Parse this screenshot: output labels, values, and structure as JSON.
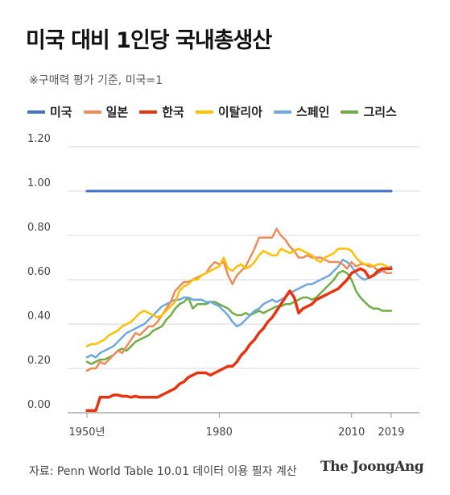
{
  "title": "미국 대비 1인당 국내총생산",
  "subtitle": "※구매력 평가 기준, 미국=1",
  "source": "자료: Penn World Table 10.01 데이터 이용 필자 계산",
  "brand": "The JoongAng",
  "chart_data": {
    "type": "line",
    "xlim": [
      1950,
      2019
    ],
    "ylim": [
      0,
      1.2
    ],
    "yticks": [
      "0.00",
      "0.20",
      "0.40",
      "0.60",
      "0.80",
      "1.00",
      "1.20"
    ],
    "xticks": [
      {
        "value": 1950,
        "label": "1950년"
      },
      {
        "value": 1980,
        "label": "1980"
      },
      {
        "value": 2010,
        "label": "2010"
      },
      {
        "value": 2019,
        "label": "2019"
      }
    ],
    "grid": true,
    "legend_position": "top",
    "series": [
      {
        "name": "미국",
        "color": "#4472c4",
        "width": 3,
        "x": [
          1950,
          2019
        ],
        "y": [
          1.0,
          1.0
        ]
      },
      {
        "name": "일본",
        "color": "#ed8b5a",
        "width": 2.5,
        "x": [
          1950,
          1951,
          1952,
          1953,
          1954,
          1955,
          1956,
          1957,
          1958,
          1959,
          1960,
          1961,
          1962,
          1963,
          1964,
          1965,
          1966,
          1967,
          1968,
          1969,
          1970,
          1971,
          1972,
          1973,
          1974,
          1975,
          1976,
          1977,
          1978,
          1979,
          1980,
          1981,
          1982,
          1983,
          1984,
          1985,
          1986,
          1987,
          1988,
          1989,
          1990,
          1991,
          1992,
          1993,
          1994,
          1995,
          1996,
          1997,
          1998,
          1999,
          2000,
          2001,
          2002,
          2003,
          2004,
          2005,
          2006,
          2007,
          2008,
          2009,
          2010,
          2011,
          2012,
          2013,
          2014,
          2015,
          2016,
          2017,
          2018,
          2019
        ],
        "y": [
          0.19,
          0.2,
          0.2,
          0.23,
          0.22,
          0.24,
          0.26,
          0.28,
          0.27,
          0.3,
          0.33,
          0.36,
          0.35,
          0.37,
          0.39,
          0.39,
          0.41,
          0.44,
          0.47,
          0.5,
          0.55,
          0.57,
          0.59,
          0.59,
          0.6,
          0.61,
          0.62,
          0.63,
          0.66,
          0.68,
          0.67,
          0.68,
          0.62,
          0.58,
          0.62,
          0.64,
          0.66,
          0.7,
          0.74,
          0.79,
          0.79,
          0.79,
          0.79,
          0.83,
          0.8,
          0.78,
          0.75,
          0.73,
          0.7,
          0.7,
          0.71,
          0.7,
          0.7,
          0.7,
          0.69,
          0.68,
          0.68,
          0.68,
          0.67,
          0.65,
          0.68,
          0.66,
          0.67,
          0.67,
          0.66,
          0.66,
          0.64,
          0.64,
          0.63,
          0.63
        ]
      },
      {
        "name": "한국",
        "color": "#e8330e",
        "width": 3.5,
        "x": [
          1950,
          1951,
          1952,
          1953,
          1954,
          1955,
          1956,
          1957,
          1958,
          1959,
          1960,
          1961,
          1962,
          1963,
          1964,
          1965,
          1966,
          1967,
          1968,
          1969,
          1970,
          1971,
          1972,
          1973,
          1974,
          1975,
          1976,
          1977,
          1978,
          1979,
          1980,
          1981,
          1982,
          1983,
          1984,
          1985,
          1986,
          1987,
          1988,
          1989,
          1990,
          1991,
          1992,
          1993,
          1994,
          1995,
          1996,
          1997,
          1998,
          1999,
          2000,
          2001,
          2002,
          2003,
          2004,
          2005,
          2006,
          2007,
          2008,
          2009,
          2010,
          2011,
          2012,
          2013,
          2014,
          2015,
          2016,
          2017,
          2018,
          2019
        ],
        "y": [
          0.01,
          0.01,
          0.01,
          0.07,
          0.07,
          0.07,
          0.08,
          0.08,
          0.075,
          0.075,
          0.07,
          0.075,
          0.07,
          0.07,
          0.07,
          0.07,
          0.07,
          0.08,
          0.09,
          0.1,
          0.11,
          0.13,
          0.14,
          0.16,
          0.17,
          0.18,
          0.18,
          0.18,
          0.17,
          0.18,
          0.19,
          0.2,
          0.21,
          0.21,
          0.23,
          0.26,
          0.28,
          0.31,
          0.33,
          0.36,
          0.38,
          0.41,
          0.43,
          0.46,
          0.49,
          0.52,
          0.55,
          0.52,
          0.45,
          0.47,
          0.48,
          0.49,
          0.51,
          0.52,
          0.53,
          0.54,
          0.55,
          0.56,
          0.58,
          0.6,
          0.63,
          0.64,
          0.65,
          0.64,
          0.61,
          0.62,
          0.64,
          0.65,
          0.65,
          0.65
        ]
      },
      {
        "name": "이탈리아",
        "color": "#ffc000",
        "width": 2.5,
        "x": [
          1950,
          1951,
          1952,
          1953,
          1954,
          1955,
          1956,
          1957,
          1958,
          1959,
          1960,
          1961,
          1962,
          1963,
          1964,
          1965,
          1966,
          1967,
          1968,
          1969,
          1970,
          1971,
          1972,
          1973,
          1974,
          1975,
          1976,
          1977,
          1978,
          1979,
          1980,
          1981,
          1982,
          1983,
          1984,
          1985,
          1986,
          1987,
          1988,
          1989,
          1990,
          1991,
          1992,
          1993,
          1994,
          1995,
          1996,
          1997,
          1998,
          1999,
          2000,
          2001,
          2002,
          2003,
          2004,
          2005,
          2006,
          2007,
          2008,
          2009,
          2010,
          2011,
          2012,
          2013,
          2014,
          2015,
          2016,
          2017,
          2018,
          2019
        ],
        "y": [
          0.3,
          0.31,
          0.31,
          0.32,
          0.33,
          0.35,
          0.36,
          0.37,
          0.39,
          0.4,
          0.41,
          0.43,
          0.45,
          0.46,
          0.45,
          0.44,
          0.43,
          0.44,
          0.46,
          0.48,
          0.5,
          0.55,
          0.57,
          0.58,
          0.6,
          0.6,
          0.62,
          0.63,
          0.64,
          0.65,
          0.66,
          0.7,
          0.65,
          0.64,
          0.66,
          0.67,
          0.65,
          0.66,
          0.68,
          0.71,
          0.73,
          0.72,
          0.71,
          0.71,
          0.74,
          0.73,
          0.72,
          0.73,
          0.74,
          0.73,
          0.72,
          0.71,
          0.69,
          0.68,
          0.7,
          0.71,
          0.72,
          0.74,
          0.74,
          0.74,
          0.73,
          0.7,
          0.68,
          0.67,
          0.67,
          0.66,
          0.67,
          0.67,
          0.66,
          0.65
        ]
      },
      {
        "name": "스페인",
        "color": "#6fa8dc",
        "width": 2.5,
        "x": [
          1950,
          1951,
          1952,
          1953,
          1954,
          1955,
          1956,
          1957,
          1958,
          1959,
          1960,
          1961,
          1962,
          1963,
          1964,
          1965,
          1966,
          1967,
          1968,
          1969,
          1970,
          1971,
          1972,
          1973,
          1974,
          1975,
          1976,
          1977,
          1978,
          1979,
          1980,
          1981,
          1982,
          1983,
          1984,
          1985,
          1986,
          1987,
          1988,
          1989,
          1990,
          1991,
          1992,
          1993,
          1994,
          1995,
          1996,
          1997,
          1998,
          1999,
          2000,
          2001,
          2002,
          2003,
          2004,
          2005,
          2006,
          2007,
          2008,
          2009,
          2010,
          2011,
          2012,
          2013,
          2014,
          2015,
          2016,
          2017,
          2018,
          2019
        ],
        "y": [
          0.25,
          0.26,
          0.25,
          0.27,
          0.28,
          0.29,
          0.3,
          0.32,
          0.34,
          0.36,
          0.37,
          0.38,
          0.39,
          0.4,
          0.42,
          0.44,
          0.46,
          0.48,
          0.49,
          0.5,
          0.51,
          0.51,
          0.52,
          0.52,
          0.51,
          0.51,
          0.51,
          0.5,
          0.5,
          0.49,
          0.48,
          0.46,
          0.44,
          0.41,
          0.39,
          0.4,
          0.42,
          0.44,
          0.46,
          0.47,
          0.49,
          0.5,
          0.51,
          0.5,
          0.51,
          0.52,
          0.54,
          0.55,
          0.56,
          0.57,
          0.58,
          0.58,
          0.59,
          0.6,
          0.61,
          0.62,
          0.64,
          0.66,
          0.69,
          0.68,
          0.66,
          0.63,
          0.61,
          0.6,
          0.61,
          0.62,
          0.63,
          0.64,
          0.65,
          0.66
        ]
      },
      {
        "name": "그리스",
        "color": "#70ad47",
        "width": 2.5,
        "x": [
          1950,
          1951,
          1952,
          1953,
          1954,
          1955,
          1956,
          1957,
          1958,
          1959,
          1960,
          1961,
          1962,
          1963,
          1964,
          1965,
          1966,
          1967,
          1968,
          1969,
          1970,
          1971,
          1972,
          1973,
          1974,
          1975,
          1976,
          1977,
          1978,
          1979,
          1980,
          1981,
          1982,
          1983,
          1984,
          1985,
          1986,
          1987,
          1988,
          1989,
          1990,
          1991,
          1992,
          1993,
          1994,
          1995,
          1996,
          1997,
          1998,
          1999,
          2000,
          2001,
          2002,
          2003,
          2004,
          2005,
          2006,
          2007,
          2008,
          2009,
          2010,
          2011,
          2012,
          2013,
          2014,
          2015,
          2016,
          2017,
          2018,
          2019
        ],
        "y": [
          0.23,
          0.22,
          0.23,
          0.24,
          0.24,
          0.25,
          0.26,
          0.28,
          0.29,
          0.28,
          0.3,
          0.32,
          0.33,
          0.34,
          0.35,
          0.37,
          0.38,
          0.39,
          0.42,
          0.44,
          0.47,
          0.49,
          0.5,
          0.52,
          0.47,
          0.49,
          0.49,
          0.49,
          0.5,
          0.5,
          0.49,
          0.48,
          0.47,
          0.45,
          0.44,
          0.44,
          0.45,
          0.44,
          0.45,
          0.46,
          0.45,
          0.46,
          0.47,
          0.48,
          0.48,
          0.49,
          0.49,
          0.5,
          0.51,
          0.52,
          0.52,
          0.51,
          0.52,
          0.54,
          0.56,
          0.58,
          0.6,
          0.63,
          0.64,
          0.63,
          0.6,
          0.55,
          0.52,
          0.5,
          0.48,
          0.47,
          0.47,
          0.46,
          0.46,
          0.46
        ]
      }
    ]
  }
}
